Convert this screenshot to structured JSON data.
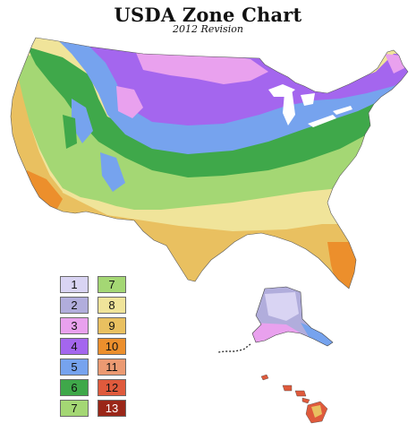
{
  "header": {
    "title": "USDA Zone Chart",
    "subtitle": "2012 Revision"
  },
  "legend": {
    "col1": [
      {
        "label": "1",
        "color": "#d9d4f3"
      },
      {
        "label": "2",
        "color": "#b1addc"
      },
      {
        "label": "3",
        "color": "#e9a1ee"
      },
      {
        "label": "4",
        "color": "#a466ee"
      },
      {
        "label": "5",
        "color": "#76a3ee"
      },
      {
        "label": "6",
        "color": "#3fa84a"
      },
      {
        "label": "7",
        "color": "#a4d774"
      }
    ],
    "col2": [
      {
        "label": "7",
        "color": "#a4d774"
      },
      {
        "label": "8",
        "color": "#f0e49a"
      },
      {
        "label": "9",
        "color": "#e9c060"
      },
      {
        "label": "10",
        "color": "#ec8f2c"
      },
      {
        "label": "11",
        "color": "#eb9a72"
      },
      {
        "label": "12",
        "color": "#df5a3c"
      },
      {
        "label": "13",
        "color": "#9a2618"
      }
    ]
  },
  "map": {
    "regions": [
      "Contiguous United States",
      "Alaska",
      "Hawaii"
    ]
  }
}
